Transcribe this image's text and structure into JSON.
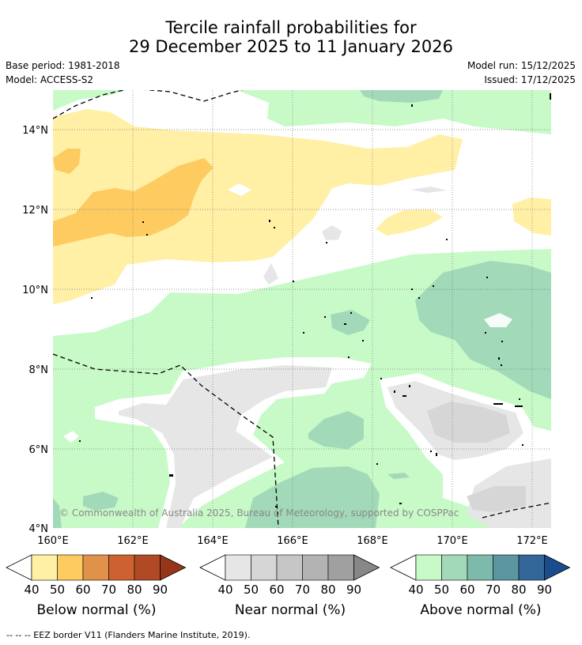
{
  "header": {
    "title_line1": "Tercile rainfall probabilities for",
    "title_line2": "29 December 2025 to 11 January 2026",
    "base_period": "Base period: 1981-2018",
    "model": "Model: ACCESS-S2",
    "model_run": "Model run: 15/12/2025",
    "issued": "Issued: 17/12/2025"
  },
  "map": {
    "lat_labels": [
      "14°N",
      "12°N",
      "10°N",
      "8°N",
      "6°N",
      "4°N"
    ],
    "lon_labels": [
      "160°E",
      "162°E",
      "164°E",
      "166°E",
      "168°E",
      "170°E",
      "172°E"
    ],
    "copyright": "© Commonwealth of Australia 2025, Bureau of Meteorology, supported by COSPPac"
  },
  "colorbars": [
    {
      "label": "Below normal (%)",
      "ticks": [
        "40",
        "50",
        "60",
        "70",
        "80",
        "90"
      ],
      "colors": [
        "#fff0a6",
        "#fdcb60",
        "#e0914a",
        "#cd6230",
        "#b04a25",
        "#963519"
      ]
    },
    {
      "label": "Near normal (%)",
      "ticks": [
        "40",
        "50",
        "60",
        "70",
        "80",
        "90"
      ],
      "colors": [
        "#e6e6e6",
        "#d6d6d6",
        "#c6c6c6",
        "#b3b3b3",
        "#a0a0a0",
        "#878787"
      ]
    },
    {
      "label": "Above normal (%)",
      "ticks": [
        "40",
        "50",
        "60",
        "70",
        "80",
        "90"
      ],
      "colors": [
        "#c8fac8",
        "#a2d9b9",
        "#7ebaab",
        "#5c96a0",
        "#336699",
        "#1a4c8c"
      ]
    }
  ],
  "footer": "-- -- -- EEZ border V11 (Flanders Marine Institute, 2019)."
}
